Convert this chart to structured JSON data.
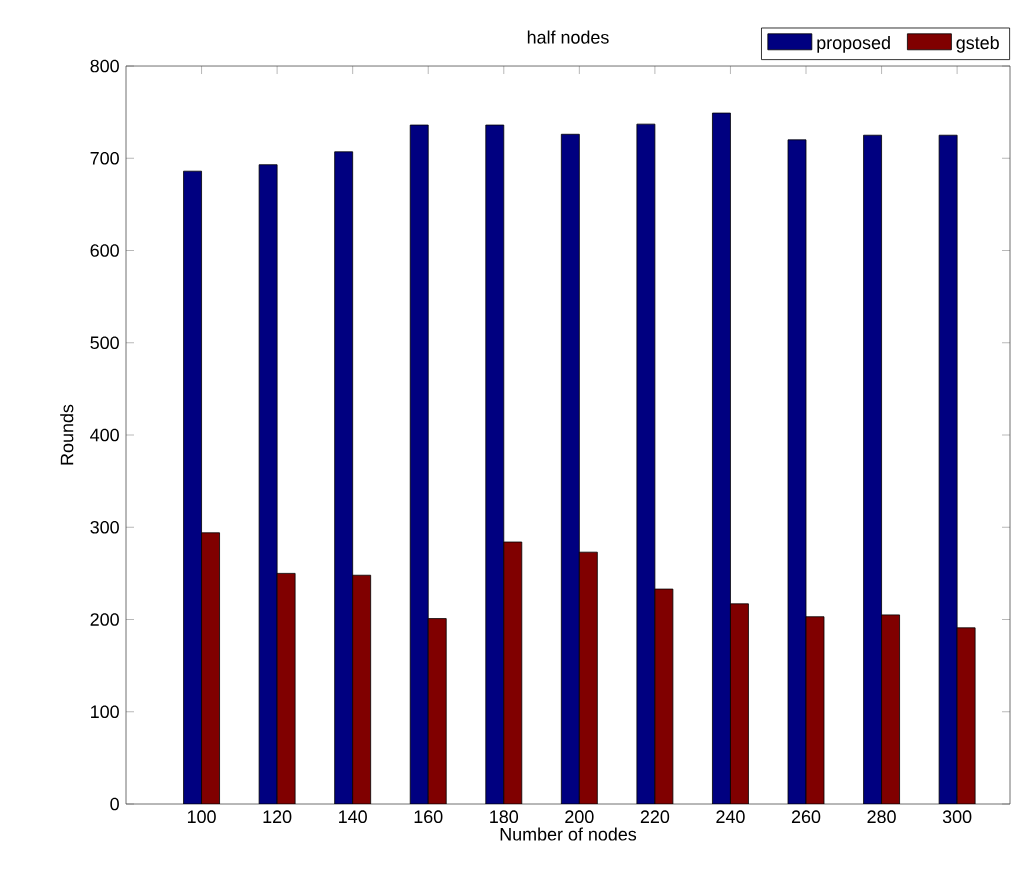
{
  "chart_data": {
    "type": "bar",
    "title": "half nodes",
    "xlabel": "Number of nodes",
    "ylabel": "Rounds",
    "categories": [
      "100",
      "120",
      "140",
      "160",
      "180",
      "200",
      "220",
      "240",
      "260",
      "280",
      "300"
    ],
    "series": [
      {
        "name": "proposed",
        "color": "#000080",
        "values": [
          686,
          693,
          707,
          736,
          736,
          726,
          737,
          749,
          720,
          725,
          725
        ]
      },
      {
        "name": "gsteb",
        "color": "#800000",
        "values": [
          294,
          250,
          248,
          201,
          284,
          273,
          233,
          217,
          203,
          205,
          191
        ]
      }
    ],
    "ylim": [
      0,
      800
    ],
    "yticks": [
      0,
      100,
      200,
      300,
      400,
      500,
      600,
      700,
      800
    ],
    "grid": false,
    "legend": "top right"
  }
}
